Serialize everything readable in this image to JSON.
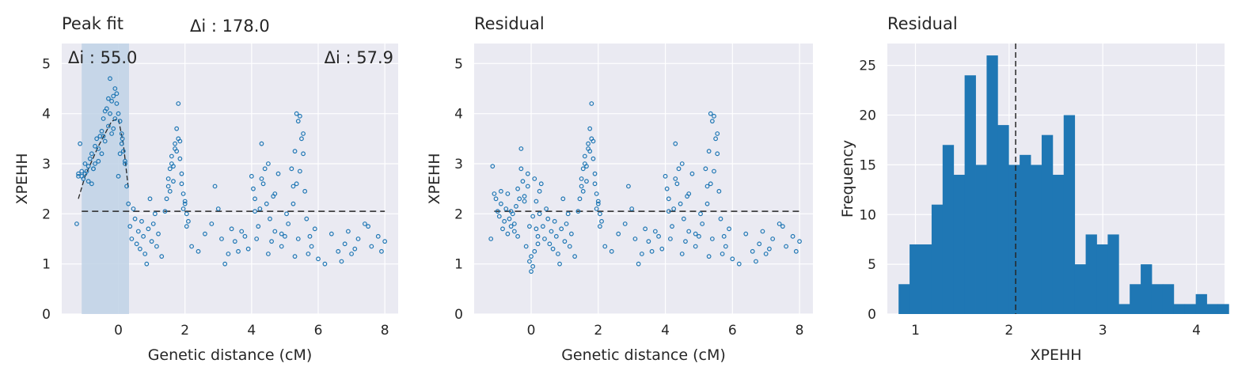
{
  "colors": {
    "background": "#eaeaf2",
    "grid": "#ffffff",
    "series": "#1f77b4",
    "region": "#c0d2e6",
    "reference_line": "#262626"
  },
  "chart_data": [
    {
      "type": "scatter",
      "title": "Peak fit",
      "xlabel": "Genetic distance (cM)",
      "ylabel": "XPEHH",
      "xlim": [
        -1.7,
        8.4
      ],
      "ylim": [
        0,
        5.4
      ],
      "xticks": [
        0,
        2,
        4,
        6,
        8
      ],
      "yticks": [
        0,
        1,
        2,
        3,
        4,
        5
      ],
      "grid": true,
      "highlight_region": [
        -1.1,
        0.32
      ],
      "baseline": 2.05,
      "annotations": [
        "Δi : 178.0",
        "Δi : 55.0",
        "Δi : 57.9"
      ],
      "fit_curve": {
        "x": [
          -1.2,
          -1.0,
          -0.8,
          -0.6,
          -0.4,
          -0.2,
          0.0,
          0.15,
          0.3
        ],
        "y": [
          2.3,
          2.75,
          3.05,
          3.35,
          3.6,
          3.85,
          3.9,
          3.4,
          2.5
        ]
      },
      "points": {
        "x": [
          -1.25,
          -1.2,
          -1.15,
          -1.1,
          -1.05,
          -1.0,
          -0.95,
          -0.9,
          -0.85,
          -0.8,
          -0.75,
          -0.7,
          -0.65,
          -0.6,
          -0.55,
          -0.5,
          -0.45,
          -0.4,
          -0.35,
          -0.3,
          -0.25,
          -0.2,
          -0.15,
          -0.1,
          -0.05,
          0.0,
          0.05,
          0.1,
          0.15,
          0.2,
          0.25,
          0.3,
          -1.2,
          -1.1,
          -1.0,
          -0.9,
          -0.8,
          -0.7,
          -0.6,
          -0.5,
          -0.4,
          -0.3,
          -0.2,
          -0.1,
          0.0,
          0.1,
          0.2,
          -0.75,
          -0.45,
          -0.25,
          -0.15,
          -0.05,
          0.05,
          0.12,
          0.35,
          0.4,
          0.45,
          0.5,
          0.55,
          0.6,
          0.65,
          0.7,
          0.75,
          0.8,
          0.85,
          0.9,
          0.95,
          1.0,
          1.05,
          1.1,
          1.15,
          1.2,
          1.3,
          1.4,
          1.45,
          1.5,
          1.55,
          1.6,
          1.65,
          1.7,
          1.75,
          1.8,
          1.85,
          1.9,
          1.95,
          2.0,
          2.05,
          2.1,
          1.5,
          1.6,
          1.7,
          1.8,
          1.9,
          2.0,
          1.55,
          1.65,
          1.75,
          1.85,
          1.95,
          2.05,
          2.2,
          2.4,
          2.6,
          2.8,
          2.9,
          3.0,
          3.1,
          3.2,
          3.3,
          3.4,
          3.5,
          3.6,
          3.7,
          3.8,
          3.9,
          4.0,
          4.05,
          4.1,
          4.15,
          4.2,
          4.25,
          4.3,
          4.35,
          4.4,
          4.45,
          4.5,
          4.55,
          4.6,
          4.65,
          4.7,
          4.8,
          4.9,
          5.0,
          5.05,
          5.1,
          4.1,
          4.3,
          4.5,
          4.7,
          4.9,
          5.2,
          5.25,
          5.3,
          5.35,
          5.4,
          5.45,
          5.5,
          5.55,
          5.6,
          5.65,
          5.7,
          5.75,
          5.8,
          5.9,
          5.25,
          5.35,
          5.45,
          5.55,
          5.3,
          5.4,
          6.0,
          6.2,
          6.4,
          6.6,
          6.8,
          7.0,
          7.2,
          7.4,
          7.6,
          7.8,
          8.0,
          6.7,
          6.9,
          7.1,
          7.5,
          7.9
        ],
        "y": [
          1.8,
          2.8,
          3.4,
          2.75,
          2.7,
          3.0,
          2.85,
          2.65,
          3.1,
          3.2,
          2.9,
          3.0,
          3.5,
          3.3,
          3.55,
          3.65,
          3.9,
          4.05,
          4.1,
          4.3,
          4.7,
          4.25,
          4.35,
          4.5,
          4.2,
          4.0,
          3.85,
          3.6,
          3.25,
          3.05,
          2.55,
          2.2,
          2.75,
          2.85,
          2.8,
          2.95,
          2.6,
          3.35,
          3.05,
          3.2,
          3.45,
          3.75,
          3.6,
          3.9,
          2.75,
          3.4,
          3.0,
          2.9,
          3.55,
          4.0,
          3.7,
          4.4,
          3.2,
          3.5,
          1.75,
          1.5,
          2.1,
          1.9,
          1.4,
          1.65,
          1.3,
          1.85,
          1.55,
          1.2,
          1.0,
          1.7,
          2.3,
          1.45,
          1.8,
          2.0,
          1.35,
          1.6,
          1.15,
          2.05,
          2.3,
          2.55,
          2.9,
          3.15,
          2.65,
          3.4,
          3.7,
          4.2,
          3.1,
          2.6,
          2.4,
          2.25,
          2.0,
          1.85,
          2.7,
          3.0,
          3.3,
          3.5,
          2.8,
          2.2,
          2.45,
          2.95,
          3.25,
          3.45,
          2.1,
          1.75,
          1.35,
          1.25,
          1.6,
          1.8,
          2.55,
          2.1,
          1.5,
          1.0,
          1.2,
          1.7,
          1.45,
          1.25,
          1.65,
          1.55,
          1.3,
          2.75,
          2.5,
          2.3,
          1.5,
          1.75,
          2.1,
          3.4,
          2.6,
          2.9,
          2.2,
          3.0,
          1.9,
          1.45,
          2.35,
          1.65,
          2.8,
          1.35,
          1.55,
          2.0,
          1.8,
          2.05,
          2.7,
          1.2,
          2.4,
          1.6,
          2.9,
          2.55,
          3.25,
          4.0,
          3.85,
          3.95,
          3.5,
          3.2,
          2.45,
          1.9,
          1.2,
          1.55,
          1.35,
          1.7,
          2.2,
          2.6,
          2.85,
          3.6,
          1.15,
          1.5,
          1.1,
          1.0,
          1.6,
          1.25,
          1.4,
          1.2,
          1.5,
          1.8,
          1.35,
          1.55,
          1.45,
          1.05,
          1.65,
          1.3,
          1.75,
          1.25
        ]
      }
    },
    {
      "type": "scatter",
      "title": "Residual",
      "xlabel": "Genetic distance (cM)",
      "ylabel": "XPEHH",
      "xlim": [
        -1.7,
        8.4
      ],
      "ylim": [
        0,
        5.4
      ],
      "xticks": [
        0,
        2,
        4,
        6,
        8
      ],
      "yticks": [
        0,
        1,
        2,
        3,
        4,
        5
      ],
      "grid": true,
      "baseline": 2.05,
      "points": {
        "x": [
          -1.2,
          -1.15,
          -1.1,
          -1.05,
          -1.0,
          -0.95,
          -0.9,
          -0.85,
          -0.8,
          -0.75,
          -0.7,
          -0.65,
          -0.6,
          -0.55,
          -0.5,
          -0.45,
          -0.4,
          -0.35,
          -0.3,
          -0.25,
          -0.2,
          -0.15,
          -0.1,
          -0.05,
          0.0,
          0.05,
          0.1,
          0.15,
          0.2,
          0.25,
          0.3,
          -0.9,
          -0.7,
          -0.5,
          -0.3,
          -0.1,
          0.0,
          0.1,
          0.2,
          -0.6,
          -0.2,
          0.05,
          -0.05,
          0.15,
          0.25,
          -0.4,
          0.35,
          0.4,
          0.45,
          0.5,
          0.55,
          0.6,
          0.65,
          0.7,
          0.75,
          0.8,
          0.85,
          0.9,
          0.95,
          1.0,
          1.05,
          1.1,
          1.15,
          1.2,
          1.3,
          1.4,
          1.45,
          1.5,
          1.55,
          1.6,
          1.65,
          1.7,
          1.75,
          1.8,
          1.85,
          1.9,
          1.95,
          2.0,
          2.05,
          2.1,
          1.5,
          1.6,
          1.7,
          1.8,
          1.9,
          2.0,
          1.55,
          1.65,
          1.75,
          1.85,
          1.95,
          2.05,
          2.2,
          2.4,
          2.6,
          2.8,
          2.9,
          3.0,
          3.1,
          3.2,
          3.3,
          3.4,
          3.5,
          3.6,
          3.7,
          3.8,
          3.9,
          4.0,
          4.05,
          4.1,
          4.15,
          4.2,
          4.25,
          4.3,
          4.35,
          4.4,
          4.45,
          4.5,
          4.55,
          4.6,
          4.65,
          4.7,
          4.8,
          4.9,
          5.0,
          5.05,
          5.1,
          4.1,
          4.3,
          4.5,
          4.7,
          4.9,
          5.2,
          5.25,
          5.3,
          5.35,
          5.4,
          5.45,
          5.5,
          5.55,
          5.6,
          5.65,
          5.7,
          5.75,
          5.8,
          5.9,
          5.25,
          5.35,
          5.45,
          5.55,
          5.3,
          5.4,
          6.0,
          6.2,
          6.4,
          6.6,
          6.8,
          7.0,
          7.2,
          7.4,
          7.6,
          7.8,
          8.0,
          6.7,
          6.9,
          7.1,
          7.5,
          7.9
        ],
        "y": [
          1.5,
          2.95,
          2.4,
          2.3,
          2.05,
          1.95,
          2.45,
          1.7,
          1.85,
          2.1,
          1.6,
          1.9,
          1.75,
          2.0,
          1.65,
          2.15,
          2.5,
          2.3,
          3.3,
          2.65,
          2.25,
          1.35,
          2.8,
          1.05,
          0.85,
          0.95,
          1.25,
          1.7,
          1.55,
          2.45,
          2.6,
          2.2,
          2.4,
          1.8,
          2.9,
          2.55,
          1.15,
          2.7,
          1.4,
          2.05,
          2.35,
          1.95,
          1.75,
          2.25,
          2.0,
          1.55,
          1.75,
          1.5,
          2.1,
          1.9,
          1.4,
          1.65,
          1.3,
          1.85,
          1.55,
          1.2,
          1.0,
          1.7,
          2.3,
          1.45,
          1.8,
          2.0,
          1.35,
          1.6,
          1.15,
          2.05,
          2.3,
          2.55,
          2.9,
          3.15,
          2.65,
          3.4,
          3.7,
          4.2,
          3.1,
          2.6,
          2.4,
          2.25,
          2.0,
          1.85,
          2.7,
          3.0,
          3.3,
          3.5,
          2.8,
          2.2,
          2.45,
          2.95,
          3.25,
          3.45,
          2.1,
          1.75,
          1.35,
          1.25,
          1.6,
          1.8,
          2.55,
          2.1,
          1.5,
          1.0,
          1.2,
          1.7,
          1.45,
          1.25,
          1.65,
          1.55,
          1.3,
          2.75,
          2.5,
          2.3,
          1.5,
          1.75,
          2.1,
          3.4,
          2.6,
          2.9,
          2.2,
          3.0,
          1.9,
          1.45,
          2.35,
          1.65,
          2.8,
          1.35,
          1.55,
          2.0,
          1.8,
          2.05,
          2.7,
          1.2,
          2.4,
          1.6,
          2.9,
          2.55,
          3.25,
          4.0,
          3.85,
          3.95,
          3.5,
          3.2,
          2.45,
          1.9,
          1.2,
          1.55,
          1.35,
          1.7,
          2.2,
          2.6,
          2.85,
          3.6,
          1.15,
          1.5,
          1.1,
          1.0,
          1.6,
          1.25,
          1.4,
          1.2,
          1.5,
          1.8,
          1.35,
          1.55,
          1.45,
          1.05,
          1.65,
          1.3,
          1.75,
          1.25
        ]
      }
    },
    {
      "type": "bar",
      "title": "Residual",
      "xlabel": "XPEHH",
      "ylabel": "Frequency",
      "xlim": [
        0.7,
        4.3
      ],
      "ylim": [
        0,
        27.2
      ],
      "xticks": [
        1,
        2,
        3,
        4
      ],
      "yticks": [
        0,
        5,
        10,
        15,
        20,
        25
      ],
      "grid": true,
      "bin_start": 0.82,
      "bin_width": 0.1175,
      "values": [
        3,
        7,
        7,
        11,
        17,
        14,
        24,
        15,
        26,
        19,
        15,
        16,
        15,
        18,
        14,
        20,
        5,
        8,
        7,
        8,
        1,
        3,
        5,
        3,
        3,
        1,
        1,
        2,
        1,
        1
      ],
      "mean_line": 2.07
    }
  ]
}
